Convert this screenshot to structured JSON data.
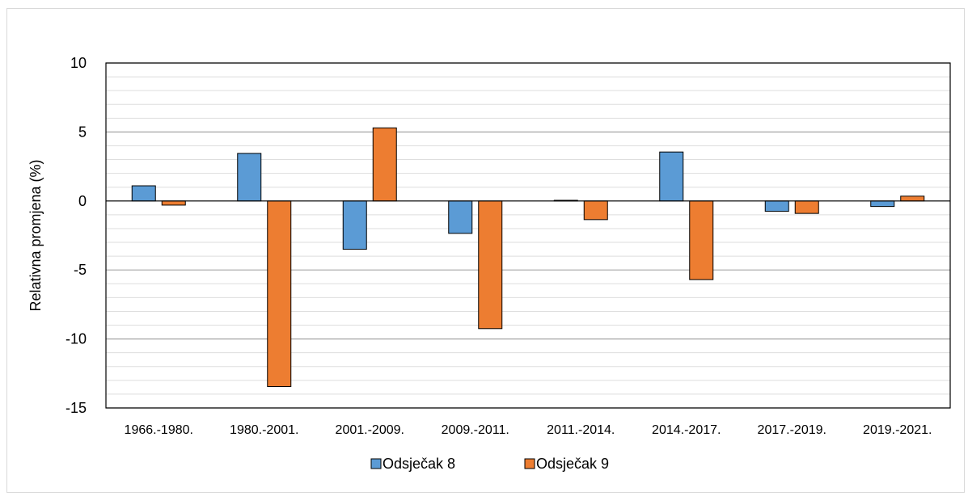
{
  "chart_data": {
    "type": "bar",
    "ylabel": "Relativna promjena (%)",
    "ylim": [
      -15,
      10
    ],
    "y_major_step": 5,
    "y_minor_step": 1,
    "yticks": [
      "10",
      "5",
      "0",
      "-5",
      "-10",
      "-15"
    ],
    "categories": [
      "1966.-1980.",
      "1980.-2001.",
      "2001.-2009.",
      "2009.-2011.",
      "2011.-2014.",
      "2014.-2017.",
      "2017.-2019.",
      "2019.-2021."
    ],
    "series": [
      {
        "name": "Odsječak 8",
        "color": "#5b9bd5",
        "values": [
          1.1,
          3.45,
          -3.5,
          -2.35,
          0.05,
          3.55,
          -0.75,
          -0.4
        ]
      },
      {
        "name": "Odsječak 9",
        "color": "#ed7d31",
        "values": [
          -0.3,
          -13.45,
          5.3,
          -9.25,
          -1.35,
          -5.7,
          -0.9,
          0.35
        ]
      }
    ],
    "legend_position": "bottom",
    "grid": true
  }
}
